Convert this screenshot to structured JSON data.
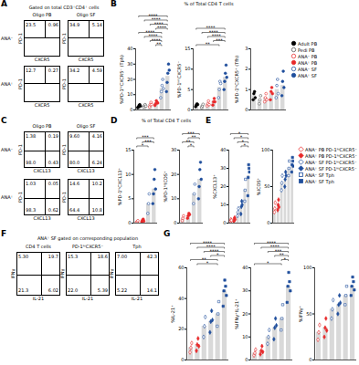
{
  "chart_data": [
    {
      "type": "flow",
      "panel": "A",
      "title": "Gated on total CD3⁺CD4⁺ cells",
      "columns": [
        "Oligo PB",
        "Oligo SF"
      ],
      "rows": [
        "ANA⁻",
        "ANA⁺"
      ],
      "x_label": "CXCR5",
      "y_label": "PD-1",
      "values": [
        [
          [
            "23.5",
            "0.96"
          ],
          [
            "34.9",
            "5.14"
          ]
        ],
        [
          [
            "12.7",
            "0.27"
          ],
          [
            "34.2",
            "4.59"
          ]
        ]
      ]
    },
    {
      "type": "bar",
      "panel": "B",
      "title": "% of Total CD4 T cells",
      "series": [
        {
          "name": "Adult PB",
          "color": "#000000",
          "marker": "circle"
        },
        {
          "name": "Pedi PB",
          "color": "#555555",
          "marker": "circle-open"
        },
        {
          "name": "ANA⁻ PB",
          "color": "#e8292a",
          "marker": "circle-open"
        },
        {
          "name": "ANA⁺ PB",
          "color": "#e8292a",
          "marker": "circle"
        },
        {
          "name": "ANA⁻ SF",
          "color": "#1f4e9c",
          "marker": "circle-open"
        },
        {
          "name": "ANA⁺ SF",
          "color": "#1f4e9c",
          "marker": "circle"
        }
      ],
      "charts": [
        {
          "y_label": "%PD-1ʰⁱCXCR5⁻ (Tph)",
          "ylim": [
            0,
            40
          ],
          "yticks": [
            0,
            10,
            20,
            30,
            40
          ],
          "groups": [
            "Adult PB",
            "Pedi PB",
            "ANA⁻ PB",
            "ANA⁺ PB",
            "ANA⁻ SF",
            "ANA⁺ SF"
          ],
          "values": [
            2.5,
            2.8,
            3.5,
            4.5,
            14,
            22
          ],
          "points": [
            [
              1.5,
              2,
              3,
              3.5,
              2.5
            ],
            [
              2,
              3,
              3.5,
              2.5
            ],
            [
              2,
              3.5,
              5,
              3.5
            ],
            [
              3,
              4,
              6,
              5,
              4.5
            ],
            [
              8,
              12,
              16,
              20,
              14
            ],
            [
              12,
              18,
              24,
              30,
              26
            ]
          ],
          "annotations": [
            {
              "from": 3,
              "to": 4,
              "label": "**"
            },
            {
              "from": 2,
              "to": 4,
              "label": "****"
            },
            {
              "from": 1,
              "to": 4,
              "label": "****"
            },
            {
              "from": 0,
              "to": 4,
              "label": "****"
            },
            {
              "from": 3,
              "to": 5,
              "label": "****"
            },
            {
              "from": 2,
              "to": 5,
              "label": "****"
            },
            {
              "from": 1,
              "to": 5,
              "label": "****"
            },
            {
              "from": 0,
              "to": 5,
              "label": "****"
            }
          ]
        },
        {
          "y_label": "%PD-1ⁱⁿᵗCXCR5⁻",
          "ylim": [
            0,
            15
          ],
          "yticks": [
            0,
            5,
            10,
            15
          ],
          "groups": [
            "Adult PB",
            "Pedi PB",
            "ANA⁻ PB",
            "ANA⁺ PB",
            "ANA⁻ SF",
            "ANA⁺ SF"
          ],
          "values": [
            1.2,
            1,
            1.5,
            2,
            5.5,
            8
          ],
          "points": [
            [
              0.8,
              1.2,
              1.5,
              1.3
            ],
            [
              0.6,
              1,
              1.4
            ],
            [
              1,
              1.5,
              2.2,
              1.3
            ],
            [
              1.2,
              2,
              2.8,
              2
            ],
            [
              3,
              5,
              7,
              6.5
            ],
            [
              5,
              7,
              9,
              11,
              8
            ]
          ],
          "annotations": [
            {
              "from": 0,
              "to": 4,
              "label": "**"
            },
            {
              "from": 3,
              "to": 5,
              "label": "***"
            },
            {
              "from": 2,
              "to": 5,
              "label": "****"
            },
            {
              "from": 1,
              "to": 5,
              "label": "****"
            },
            {
              "from": 0,
              "to": 5,
              "label": "****"
            }
          ]
        },
        {
          "y_label": "%PD-1ʰⁱCXCR5⁺ (Tfh)",
          "ylim": [
            0,
            3
          ],
          "yticks": [
            0,
            1,
            2,
            3
          ],
          "groups": [
            "Adult PB",
            "Pedi PB",
            "ANA⁻ PB",
            "ANA⁺ PB",
            "ANA⁻ SF",
            "ANA⁺ SF"
          ],
          "values": [
            0.7,
            0.5,
            0.6,
            0.8,
            1,
            1.2
          ],
          "points": [
            [
              0.5,
              0.8,
              0.9,
              0.6
            ],
            [
              0.3,
              0.5,
              0.7
            ],
            [
              0.4,
              0.6,
              0.8,
              0.5
            ],
            [
              0.5,
              0.9,
              1.1,
              0.8
            ],
            [
              0.6,
              1.2,
              1.5,
              0.8
            ],
            [
              0.7,
              1.4,
              1.9,
              1.1
            ]
          ],
          "annotations": []
        }
      ]
    },
    {
      "type": "flow",
      "panel": "C",
      "columns": [
        "Oligo PB",
        "Oligo SF"
      ],
      "rows": [
        "ANA⁻",
        "ANA⁺"
      ],
      "x_label": "CXCL13",
      "y_label": "PD-1",
      "values": [
        [
          [
            "1.38",
            "0.19",
            "98.0",
            "0.43"
          ],
          [
            "9.60",
            "4.16",
            "80.0",
            "6.24"
          ]
        ],
        [
          [
            "1.03",
            "0.05",
            "98.3",
            "0.62"
          ],
          [
            "14.6",
            "10.2",
            "64.4",
            "10.8"
          ]
        ]
      ]
    },
    {
      "type": "bar",
      "panel": "D",
      "title": "% of Total CD4 T cells",
      "charts": [
        {
          "y_label": "%PD-1ʰⁱCXCL13⁺",
          "ylim": [
            0,
            15
          ],
          "yticks": [
            0,
            5,
            10,
            15
          ],
          "groups": [
            "ANA⁻ PB",
            "ANA⁺ PB",
            "ANA⁻ SF",
            "ANA⁺ SF"
          ],
          "values": [
            0.3,
            0.5,
            4,
            7
          ],
          "points": [
            [
              0.2,
              0.3,
              0.5
            ],
            [
              0.3,
              0.6,
              0.8,
              0.4
            ],
            [
              2,
              4,
              6
            ],
            [
              4,
              6,
              9,
              11,
              7
            ]
          ],
          "annotations": [
            {
              "from": 0,
              "to": 2,
              "label": "*"
            },
            {
              "from": 1,
              "to": 3,
              "label": "***"
            },
            {
              "from": 0,
              "to": 3,
              "label": "***"
            }
          ]
        },
        {
          "y_label": "%PD-1ʰⁱICOS⁺",
          "ylim": [
            0,
            30
          ],
          "yticks": [
            0,
            10,
            20,
            30
          ],
          "groups": [
            "ANA⁻ PB",
            "ANA⁺ PB",
            "ANA⁻ SF",
            "ANA⁺ SF"
          ],
          "values": [
            2,
            3,
            12,
            18
          ],
          "points": [
            [
              1,
              2,
              3
            ],
            [
              2,
              3,
              4,
              3.5
            ],
            [
              8,
              12,
              16
            ],
            [
              10,
              15,
              22,
              25,
              18
            ]
          ],
          "annotations": [
            {
              "from": 1,
              "to": 2,
              "label": "*"
            },
            {
              "from": 0,
              "to": 2,
              "label": "**"
            },
            {
              "from": 1,
              "to": 3,
              "label": "**"
            },
            {
              "from": 0,
              "to": 3,
              "label": "***"
            }
          ]
        }
      ]
    },
    {
      "type": "bar",
      "panel": "E",
      "series": [
        {
          "name": "ANA⁻ PB PD-1ʰⁱCXCR5⁻",
          "color": "#e8292a",
          "marker": "diamond-open"
        },
        {
          "name": "ANA⁺ PB PD-1ʰⁱCXCR5⁻",
          "color": "#e8292a",
          "marker": "diamond"
        },
        {
          "name": "ANA⁻ SF PD-1ʰⁱCXCR5⁻",
          "color": "#1f4e9c",
          "marker": "diamond-open"
        },
        {
          "name": "ANA⁺ SF PD-1ʰⁱCXCR5⁻",
          "color": "#1f4e9c",
          "marker": "diamond"
        },
        {
          "name": "ANA⁻ SF Tph",
          "color": "#1f4e9c",
          "marker": "square-open"
        },
        {
          "name": "ANA⁺ SF Tph",
          "color": "#1f4e9c",
          "marker": "square"
        }
      ],
      "charts": [
        {
          "y_label": "%CXCL13⁺",
          "ylim": [
            0,
            40
          ],
          "yticks": [
            0,
            10,
            20,
            30,
            40
          ],
          "groups": [
            "ANA⁻ PB PD-1ʰⁱCXCR5⁻",
            "ANA⁺ PB PD-1ʰⁱCXCR5⁻",
            "ANA⁻ SF PD-1ʰⁱCXCR5⁻",
            "ANA⁺ SF PD-1ʰⁱCXCR5⁻",
            "ANA⁻ SF Tph",
            "ANA⁺ SF Tph"
          ],
          "values": [
            1.5,
            2,
            6,
            9,
            18,
            26
          ],
          "points": [
            [
              1,
              2,
              1.5
            ],
            [
              1,
              2.5,
              3,
              2
            ],
            [
              4,
              6,
              8
            ],
            [
              5,
              9,
              12,
              10
            ],
            [
              12,
              18,
              24
            ],
            [
              15,
              25,
              32,
              30,
              28
            ]
          ],
          "annotations": [
            {
              "from": 3,
              "to": 5,
              "label": "*"
            },
            {
              "from": 2,
              "to": 5,
              "label": "*"
            },
            {
              "from": 1,
              "to": 5,
              "label": "*"
            },
            {
              "from": 0,
              "to": 5,
              "label": "*"
            }
          ]
        },
        {
          "y_label": "%ICOS⁺",
          "ylim": [
            0,
            100
          ],
          "yticks": [
            0,
            50,
            100
          ],
          "groups": [
            "ANA⁻ PB PD-1ʰⁱCXCR5⁻",
            "ANA⁺ PB PD-1ʰⁱCXCR5⁻",
            "ANA⁻ SF PD-1ʰⁱCXCR5⁻",
            "ANA⁺ SF PD-1ʰⁱCXCR5⁻",
            "ANA⁻ SF Tph",
            "ANA⁺ SF Tph"
          ],
          "values": [
            20,
            25,
            55,
            60,
            75,
            80
          ],
          "points": [
            [
              15,
              20,
              28
            ],
            [
              18,
              25,
              32,
              22
            ],
            [
              45,
              55,
              65
            ],
            [
              50,
              60,
              70,
              65
            ],
            [
              65,
              75,
              85
            ],
            [
              70,
              80,
              90,
              85,
              78
            ]
          ],
          "annotations": []
        }
      ]
    },
    {
      "type": "flow",
      "panel": "F",
      "title": "ANA⁺ SF gated on corresponding population",
      "columns": [
        "CD4 T cells",
        "PD-1ʰⁱCXCR5⁻",
        "Tph"
      ],
      "x_label": "IL-21",
      "y_label": "IFNγ",
      "values": [
        [
          [
            "5.30",
            "19.7",
            "21.3",
            "6.02"
          ],
          [
            "15.3",
            "18.6",
            "22.0",
            "5.39"
          ],
          [
            "7.00",
            "42.3",
            "5.22",
            "14.1"
          ]
        ]
      ]
    },
    {
      "type": "bar",
      "panel": "G",
      "charts": [
        {
          "y_label": "%IL-21⁺",
          "ylim": [
            0,
            60
          ],
          "yticks": [
            0,
            20,
            40,
            60
          ],
          "groups": [
            "ANA⁻ PB PD-1ʰⁱCXCR5⁻",
            "ANA⁺ PB PD-1ʰⁱCXCR5⁻",
            "ANA⁻ SF PD-1ʰⁱCXCR5⁻",
            "ANA⁺ SF PD-1ʰⁱCXCR5⁻",
            "ANA⁻ SF Tph",
            "ANA⁺ SF Tph"
          ],
          "values": [
            8,
            10,
            22,
            25,
            30,
            45
          ],
          "points": [
            [
              5,
              8,
              11
            ],
            [
              6,
              10,
              14,
              9
            ],
            [
              15,
              22,
              28
            ],
            [
              18,
              25,
              32,
              26
            ],
            [
              22,
              30,
              38
            ],
            [
              35,
              45,
              52,
              48,
              42
            ]
          ],
          "annotations": [
            {
              "from": 1,
              "to": 4,
              "label": "*"
            },
            {
              "from": 0,
              "to": 4,
              "label": "**"
            },
            {
              "from": 3,
              "to": 5,
              "label": "*"
            },
            {
              "from": 2,
              "to": 5,
              "label": "****"
            },
            {
              "from": 1,
              "to": 5,
              "label": "****"
            },
            {
              "from": 0,
              "to": 5,
              "label": "****"
            }
          ]
        },
        {
          "y_label": "%IFNγ⁺IL-21⁺",
          "ylim": [
            0,
            40
          ],
          "yticks": [
            0,
            10,
            20,
            30,
            40
          ],
          "groups": [
            "ANA⁻ PB PD-1ʰⁱCXCR5⁻",
            "ANA⁺ PB PD-1ʰⁱCXCR5⁻",
            "ANA⁻ SF PD-1ʰⁱCXCR5⁻",
            "ANA⁺ SF PD-1ʰⁱCXCR5⁻",
            "ANA⁻ SF Tph",
            "ANA⁺ SF Tph"
          ],
          "values": [
            3,
            4,
            10,
            14,
            18,
            32
          ],
          "points": [
            [
              2,
              3,
              4.5
            ],
            [
              2.5,
              4,
              6,
              3.5
            ],
            [
              7,
              10,
              13
            ],
            [
              9,
              14,
              18,
              15
            ],
            [
              13,
              18,
              24
            ],
            [
              25,
              32,
              38,
              34,
              30
            ]
          ],
          "annotations": [
            {
              "from": 0,
              "to": 4,
              "label": "*"
            },
            {
              "from": 4,
              "to": 5,
              "label": "*"
            },
            {
              "from": 3,
              "to": 5,
              "label": "**"
            },
            {
              "from": 2,
              "to": 5,
              "label": "***"
            },
            {
              "from": 1,
              "to": 5,
              "label": "****"
            },
            {
              "from": 0,
              "to": 5,
              "label": "****"
            }
          ]
        },
        {
          "y_label": "%IFNγ⁺",
          "ylim": [
            0,
            100
          ],
          "yticks": [
            0,
            50,
            100
          ],
          "groups": [
            "ANA⁻ PB PD-1ʰⁱCXCR5⁻",
            "ANA⁺ PB PD-1ʰⁱCXCR5⁻",
            "ANA⁻ SF PD-1ʰⁱCXCR5⁻",
            "ANA⁺ SF PD-1ʰⁱCXCR5⁻",
            "ANA⁻ SF Tph",
            "ANA⁺ SF Tph"
          ],
          "values": [
            30,
            35,
            55,
            60,
            70,
            80
          ],
          "points": [
            [
              22,
              30,
              38
            ],
            [
              25,
              35,
              45,
              32
            ],
            [
              45,
              55,
              65
            ],
            [
              50,
              60,
              70,
              62
            ],
            [
              60,
              70,
              80
            ],
            [
              70,
              80,
              90,
              85,
              76
            ]
          ],
          "annotations": []
        }
      ]
    }
  ]
}
